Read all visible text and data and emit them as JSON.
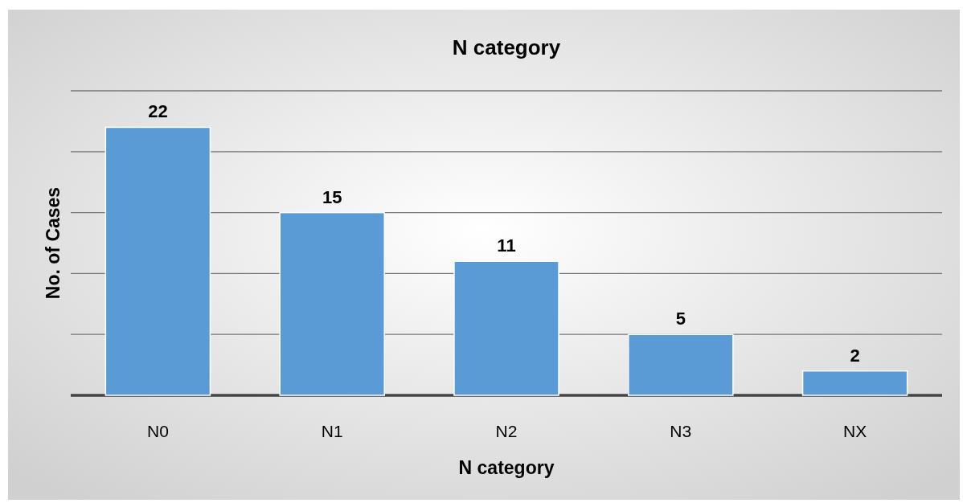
{
  "chart_data": {
    "type": "bar",
    "title": "N category",
    "xlabel": "N category",
    "ylabel": "No. of Cases",
    "categories": [
      "N0",
      "N1",
      "N2",
      "N3",
      "NX"
    ],
    "values": [
      22,
      15,
      11,
      5,
      2
    ],
    "color": "#5b9bd5",
    "ylim": [
      0,
      25
    ],
    "yticks": [
      {
        "value": 0,
        "label": null
      },
      {
        "value": 5,
        "label": null
      },
      {
        "value": 10,
        "label": null
      },
      {
        "value": 15,
        "label": null
      },
      {
        "value": 20,
        "label": null
      },
      {
        "value": 25,
        "label": null
      }
    ],
    "tick_labels": "x",
    "grid": "y",
    "data_labels": true
  }
}
